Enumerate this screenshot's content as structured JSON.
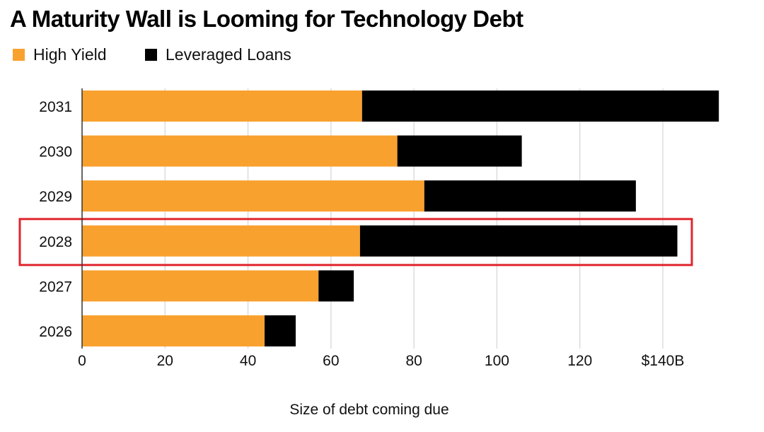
{
  "chart_data": {
    "type": "bar",
    "orientation": "horizontal",
    "stacked": true,
    "title": "A Maturity Wall is Looming for Technology Debt",
    "xlabel": "Size of debt coming due",
    "ylabel": "",
    "categories": [
      "2031",
      "2030",
      "2029",
      "2028",
      "2027",
      "2026"
    ],
    "series": [
      {
        "name": "High Yield",
        "color": "#f9a12e",
        "values": [
          67.5,
          76,
          82.5,
          67,
          57,
          44
        ]
      },
      {
        "name": "Leveraged Loans",
        "color": "#000000",
        "values": [
          86,
          30,
          51,
          76.5,
          8.5,
          7.5
        ]
      }
    ],
    "xlim": [
      0,
      155
    ],
    "xticks": [
      0,
      20,
      40,
      60,
      80,
      100,
      120,
      140
    ],
    "xtick_labels": [
      "0",
      "20",
      "40",
      "60",
      "80",
      "100",
      "120",
      "$140B"
    ],
    "grid": "vertical",
    "legend": "top-left",
    "highlight": {
      "category": "2028",
      "color": "#e0262f"
    }
  }
}
